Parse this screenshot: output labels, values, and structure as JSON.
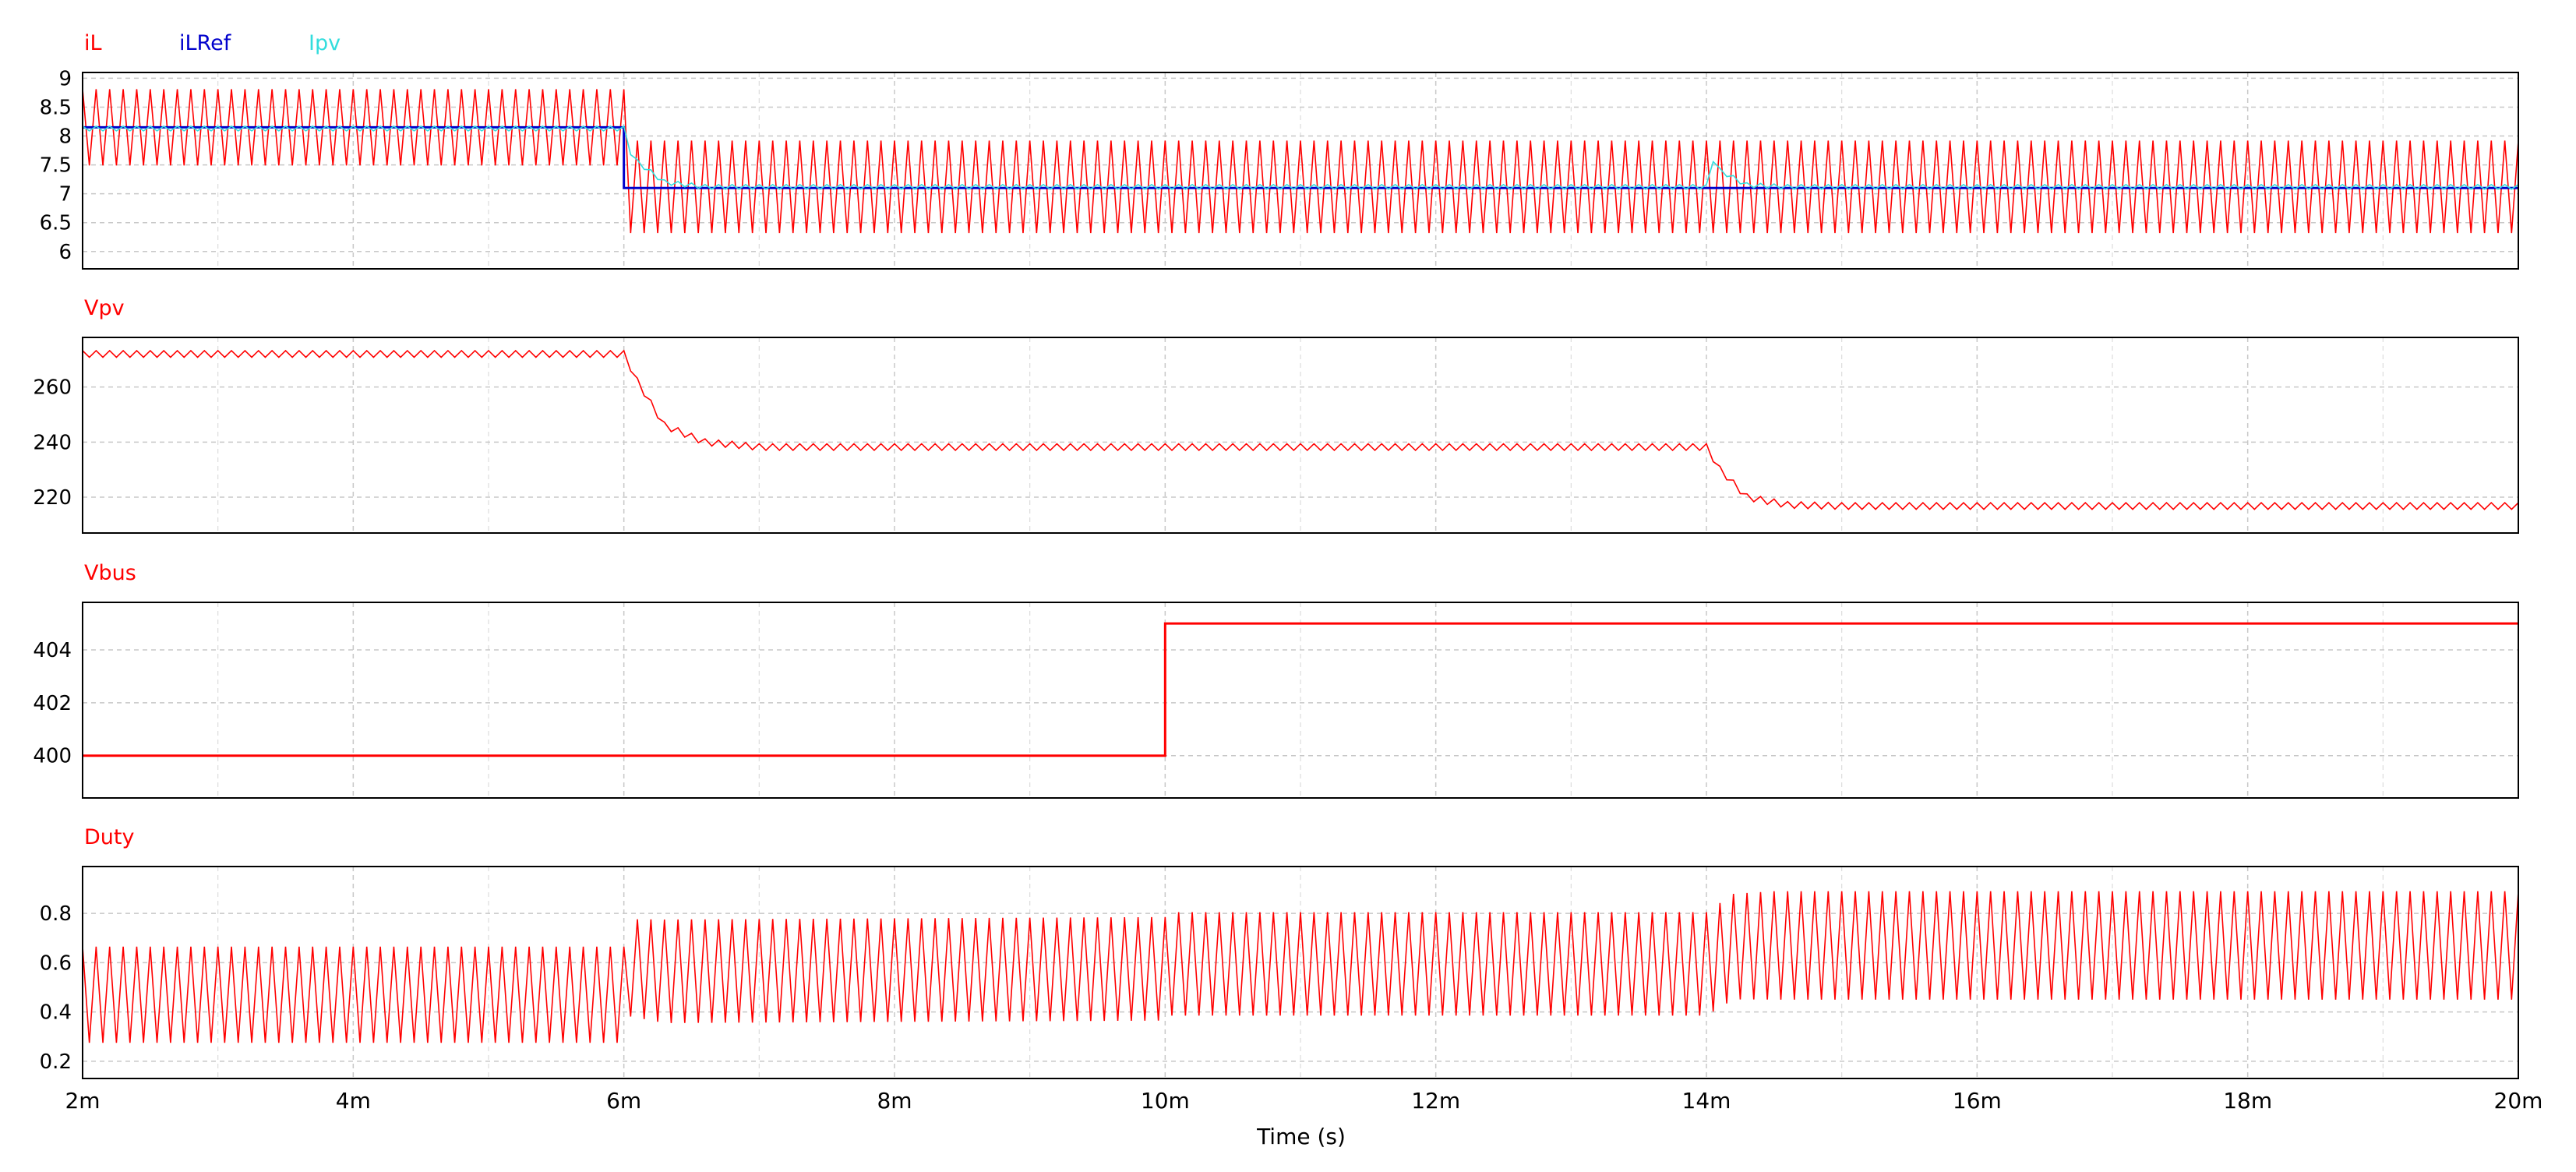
{
  "chart_data": {
    "type": "line",
    "x_axis": {
      "label": "Time (s)",
      "range": [
        0.002,
        0.02
      ],
      "ticks": [
        0.002,
        0.004,
        0.006,
        0.008,
        0.01,
        0.012,
        0.014,
        0.016,
        0.018,
        0.02
      ],
      "tick_labels": [
        "2m",
        "4m",
        "6m",
        "8m",
        "10m",
        "12m",
        "14m",
        "16m",
        "18m",
        "20m"
      ]
    },
    "grid": true,
    "panels": [
      {
        "id": "current",
        "ylim": [
          5.7,
          9.1
        ],
        "yticks": [
          6,
          6.5,
          7,
          7.5,
          8,
          8.5,
          9
        ],
        "ytick_labels": [
          "6",
          "6.5",
          "7",
          "7.5",
          "8",
          "8.5",
          "9"
        ],
        "series": [
          {
            "name": "iL",
            "color": "#ff0000",
            "style": "ripple",
            "ripple_cycles": 180,
            "center": [
              [
                0.002,
                8.15
              ],
              [
                0.006,
                8.15
              ],
              [
                0.00601,
                7.12
              ],
              [
                0.014,
                7.12
              ],
              [
                0.01401,
                7.12
              ],
              [
                0.02,
                7.12
              ]
            ],
            "amplitude": [
              [
                0.002,
                0.66
              ],
              [
                0.006,
                0.66
              ],
              [
                0.00601,
                0.8
              ],
              [
                0.014,
                0.8
              ],
              [
                0.01401,
                0.8
              ],
              [
                0.02,
                0.8
              ]
            ]
          },
          {
            "name": "iLRef",
            "color": "#0000cc",
            "style": "line",
            "points": [
              [
                0.002,
                8.15
              ],
              [
                0.006,
                8.15
              ],
              [
                0.006,
                7.1
              ],
              [
                0.014,
                7.1
              ],
              [
                0.014,
                7.1
              ],
              [
                0.02,
                7.1
              ]
            ]
          },
          {
            "name": "Ipv",
            "color": "#33dddd",
            "style": "ripple",
            "ripple_cycles": 180,
            "center": [
              [
                0.002,
                8.13
              ],
              [
                0.006,
                8.13
              ],
              [
                0.00601,
                7.85
              ],
              [
                0.0061,
                7.55
              ],
              [
                0.0063,
                7.2
              ],
              [
                0.0066,
                7.12
              ],
              [
                0.014,
                7.12
              ],
              [
                0.01401,
                7.75
              ],
              [
                0.0141,
                7.4
              ],
              [
                0.0143,
                7.15
              ],
              [
                0.0146,
                7.12
              ],
              [
                0.02,
                7.12
              ]
            ],
            "amplitude": [
              [
                0.002,
                0.04
              ],
              [
                0.02,
                0.04
              ]
            ]
          }
        ]
      },
      {
        "id": "vpv",
        "ylim": [
          207,
          278
        ],
        "yticks": [
          220,
          240,
          260
        ],
        "ytick_labels": [
          "220",
          "240",
          "260"
        ],
        "series": [
          {
            "name": "Vpv",
            "color": "#ff0000",
            "style": "ripple",
            "ripple_cycles": 180,
            "center": [
              [
                0.002,
                272
              ],
              [
                0.006,
                272
              ],
              [
                0.0061,
                262
              ],
              [
                0.0063,
                246
              ],
              [
                0.0066,
                240
              ],
              [
                0.007,
                238.2
              ],
              [
                0.014,
                238.2
              ],
              [
                0.0141,
                230
              ],
              [
                0.0143,
                220
              ],
              [
                0.0146,
                217.2
              ],
              [
                0.015,
                216.8
              ],
              [
                0.02,
                216.8
              ]
            ],
            "amplitude": [
              [
                0.002,
                1.2
              ],
              [
                0.02,
                1.2
              ]
            ]
          }
        ]
      },
      {
        "id": "vbus",
        "ylim": [
          398.4,
          405.8
        ],
        "yticks": [
          400,
          402,
          404
        ],
        "ytick_labels": [
          "400",
          "402",
          "404"
        ],
        "series": [
          {
            "name": "Vbus",
            "color": "#ff0000",
            "style": "line",
            "points": [
              [
                0.002,
                400
              ],
              [
                0.01,
                400
              ],
              [
                0.01,
                405
              ],
              [
                0.02,
                405
              ]
            ]
          }
        ]
      },
      {
        "id": "duty",
        "ylim": [
          0.13,
          0.99
        ],
        "yticks": [
          0.2,
          0.4,
          0.6,
          0.8
        ],
        "ytick_labels": [
          "0.2",
          "0.4",
          "0.6",
          "0.8"
        ],
        "series": [
          {
            "name": "Duty",
            "color": "#ff0000",
            "style": "ripple",
            "ripple_cycles": 180,
            "center": [
              [
                0.002,
                0.47
              ],
              [
                0.006,
                0.47
              ],
              [
                0.00601,
                0.62
              ],
              [
                0.006015,
                0.93
              ],
              [
                0.00603,
                0.58
              ],
              [
                0.0063,
                0.565
              ],
              [
                0.01,
                0.575
              ],
              [
                0.01001,
                0.595
              ],
              [
                0.014,
                0.595
              ],
              [
                0.0142,
                0.665
              ],
              [
                0.0145,
                0.67
              ],
              [
                0.02,
                0.67
              ]
            ],
            "amplitude": [
              [
                0.002,
                0.195
              ],
              [
                0.006,
                0.195
              ],
              [
                0.0063,
                0.21
              ],
              [
                0.014,
                0.21
              ],
              [
                0.0145,
                0.22
              ],
              [
                0.02,
                0.22
              ]
            ]
          }
        ]
      }
    ]
  }
}
